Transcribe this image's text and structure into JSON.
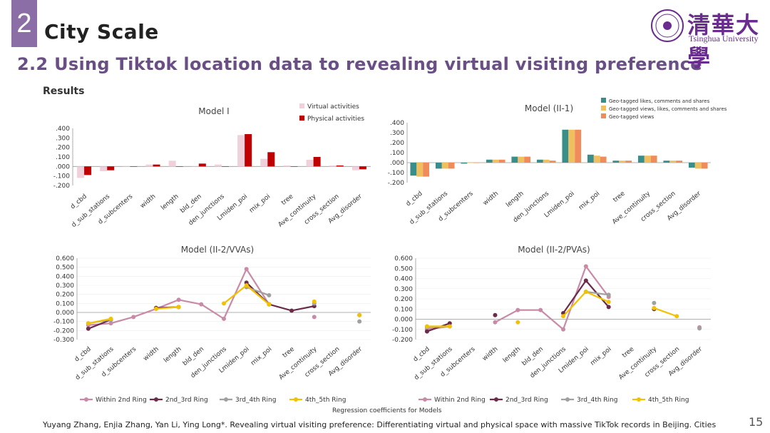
{
  "slide": {
    "section_number": "2",
    "section_title": "City Scale",
    "subtitle": "2.2 Using Tiktok location data to revealing virtual visiting preference",
    "results_label": "Results",
    "logo_chinese": "清華大學",
    "logo_english": "Tsinghua University",
    "page_number": "15",
    "regression_caption": "Regression coefficients for Models",
    "citation": "Yuyang Zhang, Enjia Zhang, Yan Li, Ying Long*. Revealing virtual visiting preference: Differentiating virtual and physical space with massive TikTok records in Beijing. Cities"
  },
  "chart_data": [
    {
      "type": "bar",
      "title": "Model I",
      "categories": [
        "d_cbd",
        "d_sub_stations",
        "d_subcenters",
        "width",
        "length",
        "bld_den",
        "den_junctions",
        "Lmiden_poi",
        "mix_poi",
        "tree",
        "Ave_continuity",
        "cross_section",
        "Avg_disorder"
      ],
      "series": [
        {
          "name": "Virtual activities",
          "color": "#efd0db",
          "values": [
            -0.12,
            -0.05,
            0.0,
            0.02,
            0.06,
            0.0,
            0.02,
            0.33,
            0.08,
            0.01,
            0.07,
            0.01,
            -0.04
          ]
        },
        {
          "name": "Physical activities",
          "color": "#c00000",
          "values": [
            -0.09,
            -0.04,
            0.0,
            0.02,
            0.0,
            0.03,
            0.0,
            0.34,
            0.15,
            0.0,
            0.1,
            0.01,
            -0.03
          ]
        }
      ],
      "ylim": [
        -0.2,
        0.4
      ],
      "yticks": [
        ".400",
        ".300",
        ".200",
        ".100",
        ".000",
        "-.100",
        "-.200"
      ],
      "legend": "top-right"
    },
    {
      "type": "bar",
      "title": "Model (II-1)",
      "categories": [
        "d_cbd",
        "d_sub_stations",
        "d_subcenters",
        "width",
        "length",
        "den_junctions",
        "Lmiden_poi",
        "mix_poi",
        "tree",
        "Ave_continuity",
        "cross_section",
        "Avg_disorder"
      ],
      "series": [
        {
          "name": "Geo-tagged likes, comments and shares",
          "color": "#3a8e8a",
          "values": [
            -0.13,
            -0.06,
            -0.01,
            0.03,
            0.06,
            0.03,
            0.33,
            0.08,
            0.02,
            0.07,
            0.02,
            -0.05
          ]
        },
        {
          "name": "Geo-tagged views, likes, comments and shares",
          "color": "#f0c060",
          "values": [
            -0.14,
            -0.06,
            0.0,
            0.03,
            0.06,
            0.03,
            0.33,
            0.07,
            0.02,
            0.07,
            0.02,
            -0.06
          ]
        },
        {
          "name": "Geo-tagged views",
          "color": "#f08c5a",
          "values": [
            -0.14,
            -0.06,
            0.0,
            0.03,
            0.06,
            0.02,
            0.33,
            0.06,
            0.02,
            0.07,
            0.02,
            -0.06
          ]
        }
      ],
      "ylim": [
        -0.2,
        0.4
      ],
      "yticks": [
        ".400",
        ".300",
        ".200",
        ".100",
        ".000",
        "-.100",
        "-.200"
      ],
      "legend": "top-right"
    },
    {
      "type": "line",
      "title": "Model (II-2/VVAs)",
      "categories": [
        "d_cbd",
        "d_sub_stations",
        "d_subcenters",
        "width",
        "length",
        "bld_den",
        "den_junctions",
        "Lmiden_poi",
        "mix_poi",
        "tree",
        "Ave_continuity",
        "cross_section",
        "Avg_disorder"
      ],
      "series": [
        {
          "name": "Within 2nd Ring",
          "color": "#c88aa6",
          "values": [
            -0.14,
            -0.12,
            -0.05,
            0.04,
            0.14,
            0.09,
            -0.07,
            0.48,
            0.09,
            null,
            -0.05,
            null,
            -0.03
          ]
        },
        {
          "name": "2nd_3rd Ring",
          "color": "#6a2c4a",
          "values": [
            -0.18,
            -0.08,
            null,
            0.05,
            0.06,
            null,
            null,
            0.33,
            0.09,
            0.02,
            0.07,
            null,
            null
          ]
        },
        {
          "name": "3rd_4th Ring",
          "color": "#a0a0a0",
          "values": [
            -0.12,
            -0.08,
            null,
            null,
            null,
            null,
            null,
            0.28,
            0.19,
            null,
            0.1,
            null,
            -0.1
          ]
        },
        {
          "name": "4th_5th Ring",
          "color": "#f2c200",
          "values": [
            -0.12,
            -0.07,
            null,
            0.04,
            0.06,
            null,
            0.1,
            0.3,
            0.09,
            null,
            0.12,
            null,
            -0.03
          ]
        }
      ],
      "ylim": [
        -0.3,
        0.6
      ],
      "yticks": [
        "0.600",
        "0.500",
        "0.400",
        "0.300",
        "0.200",
        "0.100",
        "0.000",
        "-0.100",
        "-0.200",
        "-0.300"
      ],
      "legend": "bottom"
    },
    {
      "type": "line",
      "title": "Model (II-2/PVAs)",
      "categories": [
        "d_cbd",
        "d_sub_stations",
        "d_subcenters",
        "width",
        "length",
        "bld_den",
        "den_junctions",
        "Lmiden_poi",
        "mix_poi",
        "tree",
        "Ave_continuity",
        "cross_section",
        "Avg_disorder"
      ],
      "series": [
        {
          "name": "Within 2nd Ring",
          "color": "#c88aa6",
          "values": [
            -0.1,
            -0.07,
            null,
            -0.03,
            0.09,
            0.09,
            -0.1,
            0.52,
            0.22,
            null,
            null,
            null,
            -0.08
          ]
        },
        {
          "name": "2nd_3rd Ring",
          "color": "#6a2c4a",
          "values": [
            -0.12,
            -0.04,
            null,
            0.04,
            null,
            null,
            0.06,
            0.38,
            0.12,
            null,
            0.1,
            null,
            null
          ]
        },
        {
          "name": "3rd_4th Ring",
          "color": "#a0a0a0",
          "values": [
            -0.08,
            -0.07,
            null,
            null,
            null,
            null,
            null,
            0.27,
            0.24,
            null,
            0.16,
            null,
            -0.09
          ]
        },
        {
          "name": "4th_5th Ring",
          "color": "#f2c200",
          "values": [
            -0.07,
            -0.07,
            null,
            null,
            -0.03,
            null,
            0.03,
            0.27,
            0.17,
            null,
            0.11,
            0.03,
            null
          ]
        }
      ],
      "ylim": [
        -0.2,
        0.6
      ],
      "yticks": [
        "0.600",
        "0.500",
        "0.400",
        "0.300",
        "0.200",
        "0.100",
        "0.000",
        "-0.100",
        "-0.200"
      ],
      "legend": "bottom"
    }
  ]
}
